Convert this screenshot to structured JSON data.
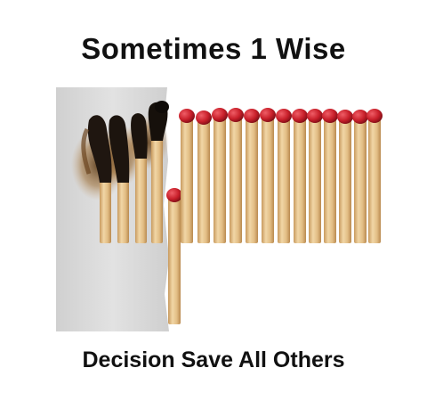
{
  "meme": {
    "top_text": "Sometimes 1 Wise",
    "bottom_text": "Decision Save All Others"
  },
  "photo": {
    "subject": "matchsticks",
    "burnt_match_count": 4,
    "removed_match_count": 1,
    "unburnt_match_count": 13
  },
  "colors": {
    "match_head": "#c81f2a",
    "match_stick": "#e3c08a",
    "panel": "#dcdcdc",
    "char": "#1a1410"
  }
}
